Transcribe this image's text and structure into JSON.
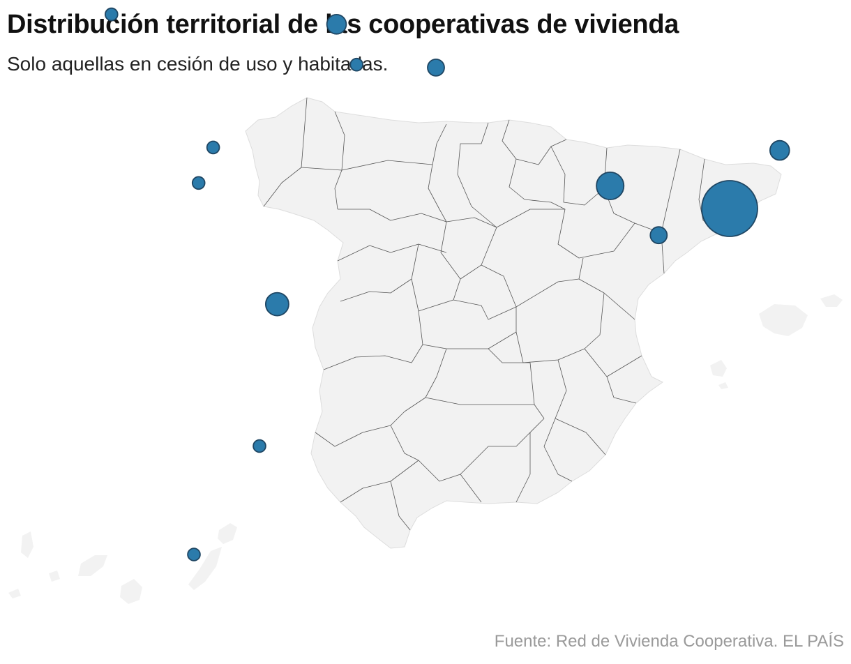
{
  "title": "Distribución territorial de las cooperativas de vivienda",
  "subtitle": "Solo aquellas en cesión de uso y habitadas.",
  "source": "Fuente: Red de Vivienda Cooperativa. EL PAÍS",
  "colors": {
    "land": "#f2f2f2",
    "border": "#555555",
    "bubble": "#2b7bab",
    "bubble_stroke": "#1f4663",
    "title": "#111111",
    "source": "#9a9a9a"
  },
  "map_data": {
    "type": "proportional-symbol",
    "bubbles": [
      {
        "id": "barcelona",
        "lon": 2.17,
        "lat": 41.39,
        "relative_size": 1.0
      },
      {
        "id": "lleida",
        "lon": 0.62,
        "lat": 41.62,
        "relative_size": 0.24
      },
      {
        "id": "girona",
        "lon": 2.82,
        "lat": 41.98,
        "relative_size": 0.12
      },
      {
        "id": "tarragona",
        "lon": 1.25,
        "lat": 41.12,
        "relative_size": 0.09
      },
      {
        "id": "madrid",
        "lon": -3.7,
        "lat": 40.42,
        "relative_size": 0.17
      },
      {
        "id": "bizkaia",
        "lon": -2.93,
        "lat": 43.26,
        "relative_size": 0.12
      },
      {
        "id": "navarra",
        "lon": -1.64,
        "lat": 42.82,
        "relative_size": 0.09
      },
      {
        "id": "alava",
        "lon": -2.67,
        "lat": 42.85,
        "relative_size": 0.05
      },
      {
        "id": "asturias",
        "lon": -5.85,
        "lat": 43.36,
        "relative_size": 0.05
      },
      {
        "id": "palencia",
        "lon": -4.53,
        "lat": 42.01,
        "relative_size": 0.05
      },
      {
        "id": "valladolid",
        "lon": -4.72,
        "lat": 41.65,
        "relative_size": 0.05
      },
      {
        "id": "ciudad-real",
        "lon": -3.93,
        "lat": 38.98,
        "relative_size": 0.05
      },
      {
        "id": "cordoba",
        "lon": -4.78,
        "lat": 37.88,
        "relative_size": 0.05
      },
      {
        "id": "cadiz",
        "lon": -6.13,
        "lat": 36.68,
        "relative_size": 0.05
      }
    ]
  }
}
